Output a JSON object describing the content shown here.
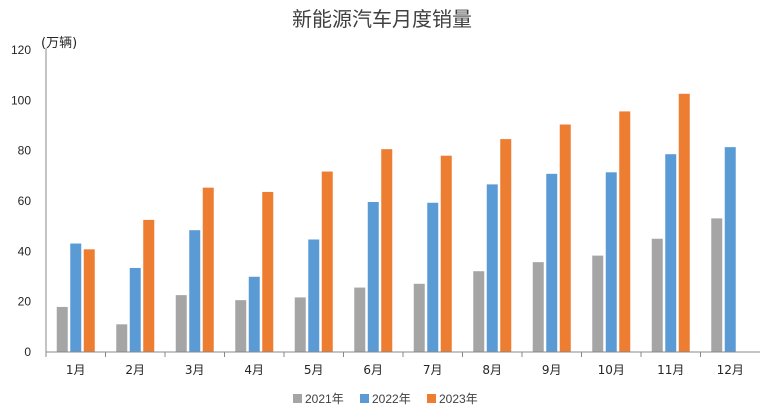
{
  "chart_data": {
    "type": "bar",
    "title": "新能源汽车月度销量",
    "ylabel": "(万辆)",
    "xlabel": "",
    "categories": [
      "1月",
      "2月",
      "3月",
      "4月",
      "5月",
      "6月",
      "7月",
      "8月",
      "9月",
      "10月",
      "11月",
      "12月"
    ],
    "series": [
      {
        "name": "2021年",
        "color": "#a5a5a5",
        "values": [
          17.9,
          11.0,
          22.6,
          20.6,
          21.7,
          25.6,
          27.1,
          32.1,
          35.7,
          38.3,
          45.0,
          53.1
        ]
      },
      {
        "name": "2022年",
        "color": "#5b9bd5",
        "values": [
          43.1,
          33.4,
          48.4,
          29.9,
          44.7,
          59.6,
          59.3,
          66.6,
          70.8,
          71.4,
          78.6,
          81.4
        ]
      },
      {
        "name": "2023年",
        "color": "#ed7d31",
        "values": [
          40.8,
          52.5,
          65.3,
          63.6,
          71.7,
          80.6,
          78.0,
          84.6,
          90.4,
          95.6,
          102.6,
          null
        ]
      }
    ],
    "ylim": [
      0,
      120
    ],
    "yticks": [
      0,
      20,
      40,
      60,
      80,
      100,
      120
    ],
    "grid": false,
    "legend_position": "bottom"
  }
}
